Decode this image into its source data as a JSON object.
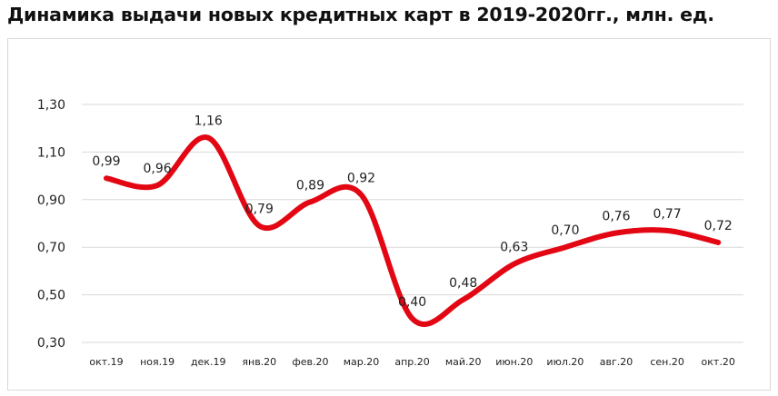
{
  "title": "Динамика выдачи новых кредитных карт в 2019-2020гг., млн. ед.",
  "chart_data": {
    "type": "line",
    "title": "Динамика выдачи новых кредитных карт в 2019-2020гг., млн. ед.",
    "categories": [
      "окт.19",
      "ноя.19",
      "дек.19",
      "янв.20",
      "фев.20",
      "мар.20",
      "апр.20",
      "май.20",
      "июн.20",
      "июл.20",
      "авг.20",
      "сен.20",
      "окт.20"
    ],
    "series": [
      {
        "values": [
          0.99,
          0.96,
          1.16,
          0.79,
          0.89,
          0.92,
          0.4,
          0.48,
          0.63,
          0.7,
          0.76,
          0.77,
          0.72
        ],
        "labels": [
          "0,99",
          "0,96",
          "1,16",
          "0,79",
          "0,89",
          "0,92",
          "0,40",
          "0,48",
          "0,63",
          "0,70",
          "0,76",
          "0,77",
          "0,72"
        ]
      }
    ],
    "ylim": [
      0.3,
      1.3
    ],
    "yticks": [
      0.3,
      0.5,
      0.7,
      0.9,
      1.1,
      1.3
    ],
    "ytick_labels": [
      "0,30",
      "0,50",
      "0,70",
      "0,90",
      "1,10",
      "1,30"
    ],
    "grid": true,
    "smooth": true,
    "line_color": "#e30613",
    "xlabel": "",
    "ylabel": ""
  }
}
